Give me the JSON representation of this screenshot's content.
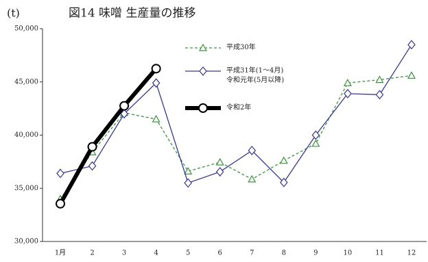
{
  "chart_data": {
    "type": "line",
    "title": "図14 味噌 生産量の推移",
    "ylabel": "(t)",
    "categories": [
      "1月",
      "2",
      "3",
      "4",
      "5",
      "6",
      "7",
      "8",
      "9",
      "10",
      "11",
      "12"
    ],
    "series": [
      {
        "name": "平成30年",
        "color": "#339933",
        "marker": "triangle",
        "dash": true,
        "values": [
          34000,
          38400,
          42100,
          41500,
          36600,
          37450,
          35850,
          37600,
          39200,
          44900,
          45200,
          45600
        ]
      },
      {
        "name": "平成31年(1～4月)\n令和元年(5月以降)",
        "color": "#3333aa",
        "marker": "diamond",
        "dash": false,
        "values": [
          36400,
          37100,
          42000,
          44900,
          35500,
          36550,
          38550,
          35550,
          40000,
          43900,
          43800,
          48500
        ]
      },
      {
        "name": "令和2年",
        "color": "#000000",
        "marker": "circle",
        "dash": false,
        "width": 6,
        "values": [
          33550,
          38900,
          42750,
          46250,
          null,
          null,
          null,
          null,
          null,
          null,
          null,
          null
        ]
      }
    ],
    "ylim": [
      30000,
      50000
    ],
    "yticks": [
      {
        "value": 30000,
        "label": "30,000"
      },
      {
        "value": 35000,
        "label": "35,000"
      },
      {
        "value": 40000,
        "label": "40,000"
      },
      {
        "value": 45000,
        "label": "45,000"
      },
      {
        "value": 50000,
        "label": "50,000"
      }
    ],
    "grid": false
  }
}
